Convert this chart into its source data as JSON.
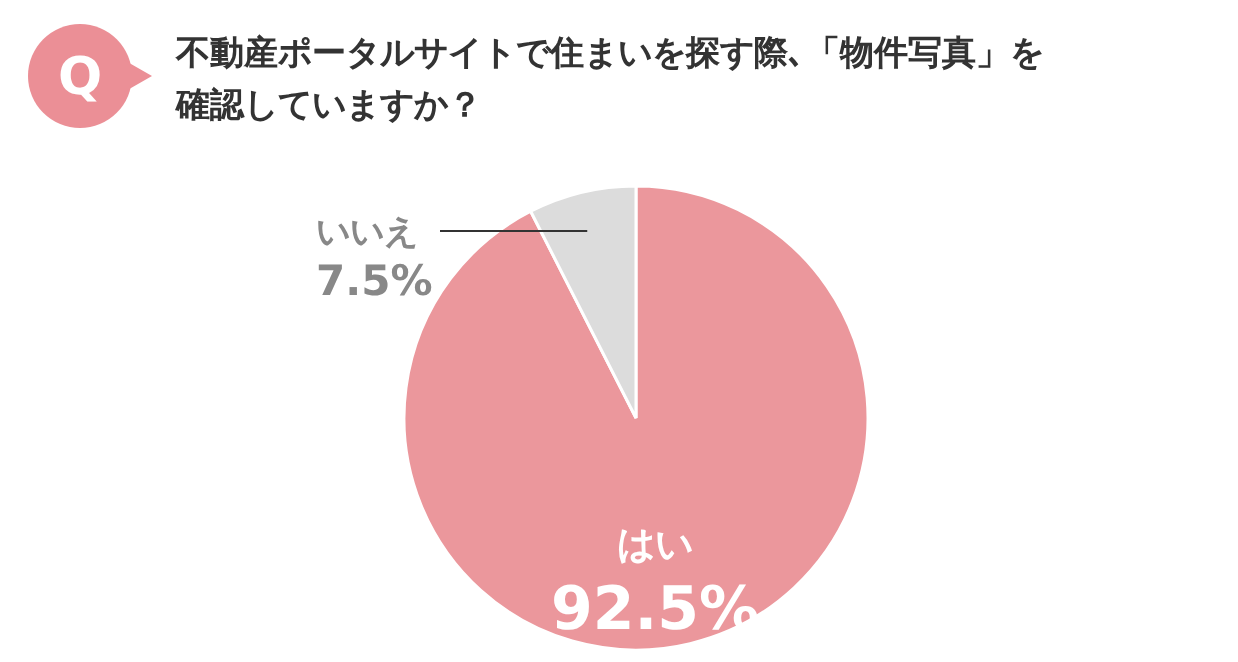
{
  "chart_data": {
    "type": "pie",
    "title": "不動産ポータルサイトで住まいを探す際､「物件写真」を確認していますか？",
    "value_labels": [
      "92.5%",
      "7.5%"
    ],
    "categories": [
      "はい",
      "いいえ"
    ],
    "values": [
      92.5,
      7.5
    ],
    "colors": [
      "#eb979c",
      "#dcdcdc"
    ],
    "annotations": [
      "Q"
    ]
  }
}
